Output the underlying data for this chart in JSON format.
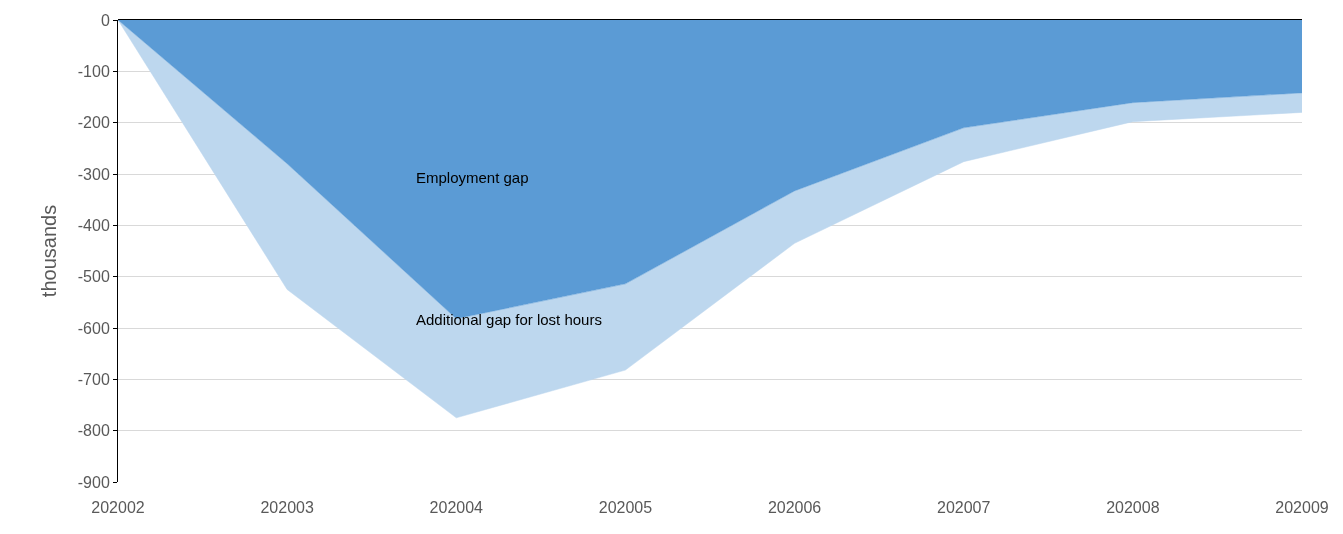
{
  "chart_data": {
    "type": "area",
    "stacked": true,
    "ylabel": "thousands",
    "categories": [
      "202002",
      "202003",
      "202004",
      "202005",
      "202006",
      "202007",
      "202008",
      "202009"
    ],
    "series": [
      {
        "name": "Employment gap",
        "color": "#5b9bd5",
        "values": [
          0,
          -280,
          -582,
          -514,
          -333,
          -210,
          -161,
          -142
        ]
      },
      {
        "name": "Additional gap for lost hours",
        "color": "#bdd7ee",
        "values": [
          0,
          -245,
          -193,
          -168,
          -102,
          -66,
          -37,
          -38
        ]
      }
    ],
    "ylim": [
      -900,
      0
    ],
    "yticks": [
      -900,
      -800,
      -700,
      -600,
      -500,
      -400,
      -300,
      -200,
      -100,
      0
    ],
    "grid": "y",
    "legend": false
  }
}
